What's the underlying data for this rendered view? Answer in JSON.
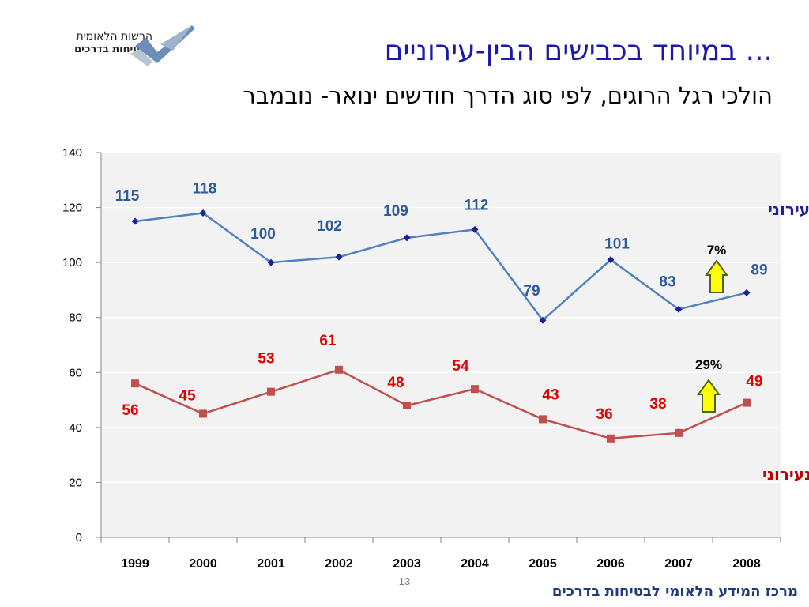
{
  "header": {
    "title": "... במיוחד בכבישים הבין-עירוניים",
    "subtitle": "הולכי רגל הרוגים, לפי סוג הדרך חודשים ינואר- נובמבר"
  },
  "logo": {
    "line1": "הרשות הלאומית",
    "line2": "לבטיחות בדרכים"
  },
  "footer": {
    "page_number": "13",
    "org_name": "מרכז המידע הלאומי לבטיחות בדרכים"
  },
  "colors": {
    "urban_line": "#4f81bd",
    "urban_marker": "#1f1f99",
    "urban_label": "#2e5b9a",
    "interurban_line": "#c0504d",
    "interurban_label": "#e00000",
    "interurban_series_label": "#c00000",
    "urban_series_label": "#1f1f99",
    "plot_background": "#f2f2f2",
    "arrow_fill": "#ffff00",
    "arrow_stroke": "#4f6228"
  },
  "chart_data": {
    "type": "line",
    "title": "",
    "xlabel": "",
    "ylabel": "",
    "ylim": [
      0,
      140
    ],
    "yticks": [
      0,
      20,
      40,
      60,
      80,
      100,
      120,
      140
    ],
    "grid": true,
    "categories": [
      "1999",
      "2000",
      "2001",
      "2002",
      "2003",
      "2004",
      "2005",
      "2006",
      "2007",
      "2008"
    ],
    "series": [
      {
        "name": "עירוני",
        "values": [
          115,
          118,
          100,
          102,
          109,
          112,
          79,
          101,
          83,
          89
        ],
        "marker": "diamond"
      },
      {
        "name": "בינעירוני",
        "values": [
          56,
          45,
          53,
          61,
          48,
          54,
          43,
          36,
          38,
          49
        ],
        "marker": "square"
      }
    ],
    "annotations": [
      {
        "text": "7%",
        "series": 0,
        "arrow": "up"
      },
      {
        "text": "29%",
        "series": 1,
        "arrow": "up"
      }
    ]
  }
}
